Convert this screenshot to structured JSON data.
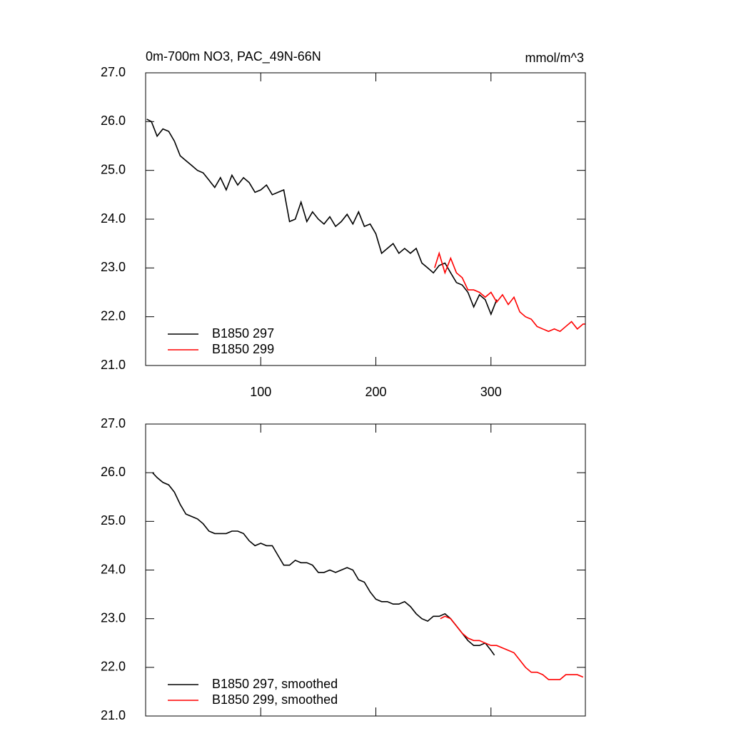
{
  "chart_data": [
    {
      "type": "line",
      "title": "0m-700m NO3, PAC_49N-66N",
      "units_label": "mmol/m^3",
      "xlim": [
        0,
        382
      ],
      "xticks": [
        100,
        200,
        300
      ],
      "show_xtick_labels": true,
      "ylim": [
        21,
        27
      ],
      "yticks": [
        {
          "value": 21,
          "label": "21.0"
        },
        {
          "value": 22,
          "label": "22.0"
        },
        {
          "value": 23,
          "label": "23.0"
        },
        {
          "value": 24,
          "label": "24.0"
        },
        {
          "value": 25,
          "label": "25.0"
        },
        {
          "value": 26,
          "label": "26.0"
        },
        {
          "value": 27,
          "label": "27.0"
        }
      ],
      "legend": "lower left",
      "series": [
        {
          "name": "B1850 297",
          "color": "#000000",
          "x": [
            1,
            5,
            10,
            15,
            20,
            25,
            30,
            35,
            40,
            45,
            50,
            55,
            60,
            65,
            70,
            75,
            80,
            85,
            90,
            95,
            100,
            105,
            110,
            115,
            120,
            125,
            130,
            135,
            140,
            145,
            150,
            155,
            160,
            165,
            170,
            175,
            180,
            185,
            190,
            195,
            200,
            205,
            210,
            215,
            220,
            225,
            230,
            235,
            240,
            245,
            250,
            255,
            260,
            265,
            270,
            275,
            280,
            285,
            290,
            295,
            300,
            305
          ],
          "values": [
            26.05,
            26.0,
            25.7,
            25.85,
            25.8,
            25.6,
            25.3,
            25.2,
            25.1,
            25.0,
            24.95,
            24.8,
            24.65,
            24.85,
            24.6,
            24.9,
            24.7,
            24.85,
            24.75,
            24.55,
            24.6,
            24.7,
            24.5,
            24.55,
            24.6,
            23.95,
            24.0,
            24.35,
            23.95,
            24.15,
            24.0,
            23.9,
            24.05,
            23.85,
            23.95,
            24.1,
            23.9,
            24.15,
            23.85,
            23.9,
            23.7,
            23.3,
            23.4,
            23.5,
            23.3,
            23.4,
            23.3,
            23.4,
            23.1,
            23.0,
            22.9,
            23.05,
            23.1,
            22.9,
            22.7,
            22.65,
            22.5,
            22.2,
            22.45,
            22.35,
            22.05,
            22.35
          ]
        },
        {
          "name": "B1850 299",
          "color": "#ff0000",
          "x": [
            251,
            255,
            260,
            265,
            270,
            275,
            280,
            285,
            290,
            295,
            300,
            305,
            310,
            315,
            320,
            325,
            330,
            335,
            340,
            345,
            350,
            355,
            360,
            365,
            370,
            375,
            380,
            382
          ],
          "values": [
            23.0,
            23.3,
            22.9,
            23.2,
            22.9,
            22.8,
            22.55,
            22.55,
            22.5,
            22.4,
            22.5,
            22.3,
            22.45,
            22.25,
            22.4,
            22.1,
            22.0,
            21.95,
            21.8,
            21.75,
            21.7,
            21.75,
            21.7,
            21.8,
            21.9,
            21.75,
            21.85,
            21.85
          ]
        }
      ]
    },
    {
      "type": "line",
      "xlim": [
        0,
        382
      ],
      "xticks": [
        100,
        200,
        300
      ],
      "show_xtick_labels": false,
      "ylim": [
        21,
        27
      ],
      "yticks": [
        {
          "value": 21,
          "label": "21.0"
        },
        {
          "value": 22,
          "label": "22.0"
        },
        {
          "value": 23,
          "label": "23.0"
        },
        {
          "value": 24,
          "label": "24.0"
        },
        {
          "value": 25,
          "label": "25.0"
        },
        {
          "value": 26,
          "label": "26.0"
        },
        {
          "value": 27,
          "label": "27.0"
        }
      ],
      "legend": "lower left",
      "series": [
        {
          "name": "B1850 297, smoothed",
          "color": "#000000",
          "x": [
            6,
            10,
            15,
            20,
            25,
            30,
            35,
            40,
            45,
            50,
            55,
            60,
            65,
            70,
            75,
            80,
            85,
            90,
            95,
            100,
            105,
            110,
            115,
            120,
            125,
            130,
            135,
            140,
            145,
            150,
            155,
            160,
            165,
            170,
            175,
            180,
            185,
            190,
            195,
            200,
            205,
            210,
            215,
            220,
            225,
            230,
            235,
            240,
            245,
            250,
            255,
            260,
            265,
            270,
            275,
            280,
            285,
            290,
            295,
            300,
            303
          ],
          "values": [
            26.0,
            25.9,
            25.8,
            25.75,
            25.6,
            25.35,
            25.15,
            25.1,
            25.05,
            24.95,
            24.8,
            24.75,
            24.75,
            24.75,
            24.8,
            24.8,
            24.75,
            24.6,
            24.5,
            24.55,
            24.5,
            24.5,
            24.3,
            24.1,
            24.1,
            24.2,
            24.15,
            24.15,
            24.1,
            23.95,
            23.95,
            24.0,
            23.95,
            24.0,
            24.05,
            24.0,
            23.8,
            23.75,
            23.55,
            23.4,
            23.35,
            23.35,
            23.3,
            23.3,
            23.35,
            23.25,
            23.1,
            23.0,
            22.95,
            23.05,
            23.05,
            23.1,
            23.0,
            22.85,
            22.7,
            22.55,
            22.45,
            22.45,
            22.5,
            22.35,
            22.25
          ]
        },
        {
          "name": "B1850 299, smoothed",
          "color": "#ff0000",
          "x": [
            256,
            260,
            265,
            270,
            275,
            280,
            285,
            290,
            295,
            300,
            305,
            310,
            315,
            320,
            325,
            330,
            335,
            340,
            345,
            350,
            355,
            360,
            365,
            370,
            375,
            380
          ],
          "values": [
            23.0,
            23.05,
            23.0,
            22.85,
            22.7,
            22.6,
            22.55,
            22.55,
            22.5,
            22.45,
            22.45,
            22.4,
            22.35,
            22.3,
            22.15,
            22.0,
            21.9,
            21.9,
            21.85,
            21.75,
            21.75,
            21.75,
            21.85,
            21.85,
            21.85,
            21.8
          ]
        }
      ]
    }
  ]
}
